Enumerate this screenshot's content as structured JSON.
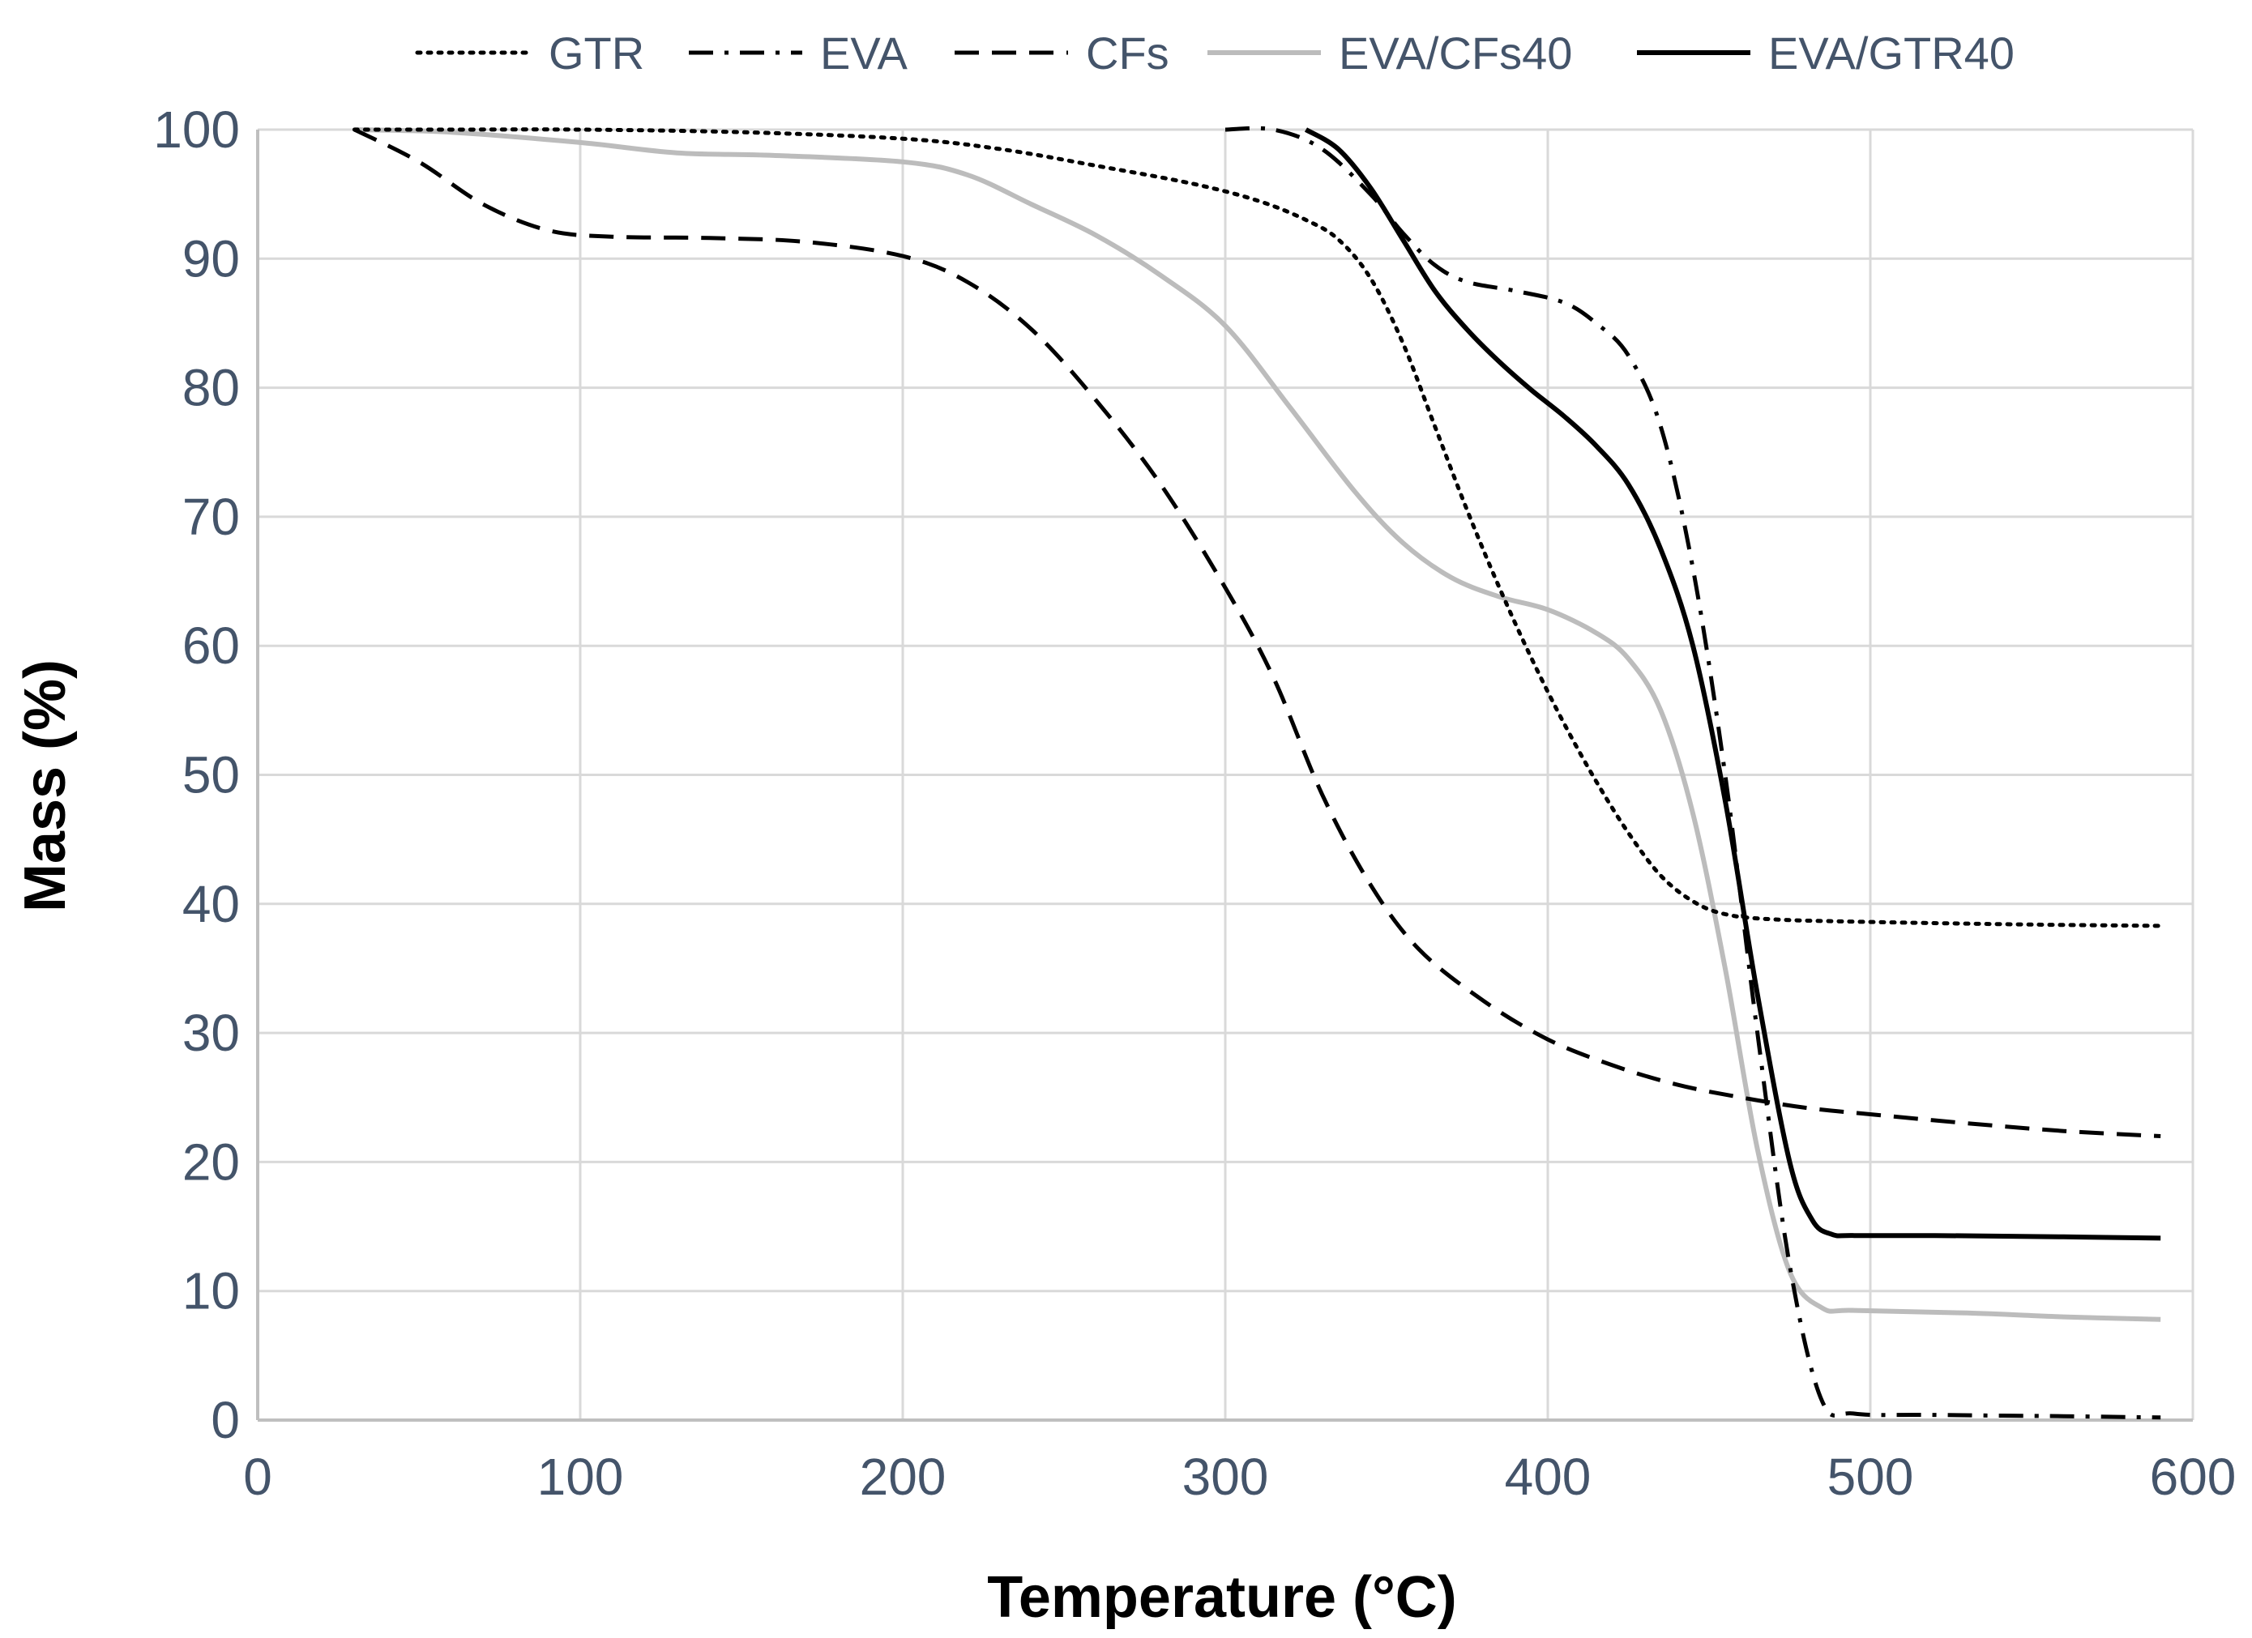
{
  "chart_data": {
    "type": "line",
    "title": "",
    "xlabel": "Temperature (°C)",
    "ylabel": "Mass (%)",
    "xlim": [
      0,
      600
    ],
    "ylim": [
      0,
      100
    ],
    "x_ticks": [
      "0",
      "100",
      "200",
      "300",
      "400",
      "500",
      "600"
    ],
    "y_ticks": [
      "0",
      "10",
      "20",
      "30",
      "40",
      "50",
      "60",
      "70",
      "80",
      "90",
      "100"
    ],
    "grid": "on",
    "legend_position": "top",
    "series": [
      {
        "name": "GTR",
        "style": "dotted",
        "color": "#000000",
        "x": [
          30,
          60,
          100,
          150,
          200,
          230,
          260,
          290,
          310,
          325,
          335,
          345,
          355,
          365,
          375,
          385,
          395,
          405,
          415,
          425,
          435,
          445,
          455,
          470,
          500,
          550,
          590
        ],
        "y": [
          100,
          100,
          100,
          99.8,
          99.3,
          98.5,
          97.2,
          95.8,
          94.5,
          93,
          91.5,
          88.5,
          83.5,
          77,
          70.5,
          64.5,
          59,
          54,
          49.5,
          45.5,
          42.2,
          40.2,
          39.2,
          38.8,
          38.6,
          38.4,
          38.3
        ]
      },
      {
        "name": "EVA",
        "style": "dash-dot",
        "color": "#000000",
        "x": [
          300,
          315,
          330,
          345,
          355,
          365,
          375,
          390,
          405,
          415,
          425,
          435,
          445,
          455,
          465,
          475,
          485,
          495,
          520,
          560,
          590
        ],
        "y": [
          100,
          100,
          98.5,
          95,
          92,
          89.5,
          88.2,
          87.5,
          86.6,
          85,
          82.5,
          77,
          66,
          50,
          30,
          12,
          1.5,
          0.5,
          0.4,
          0.3,
          0.2
        ]
      },
      {
        "name": "CFs",
        "style": "dashed",
        "color": "#000000",
        "x": [
          30,
          50,
          70,
          90,
          110,
          140,
          170,
          200,
          220,
          240,
          260,
          280,
          300,
          315,
          330,
          345,
          360,
          380,
          400,
          420,
          440,
          460,
          480,
          500,
          530,
          560,
          590
        ],
        "y": [
          100,
          97.5,
          94.2,
          92.2,
          91.7,
          91.6,
          91.3,
          90.2,
          88.2,
          84.5,
          79,
          72.5,
          64.5,
          57.5,
          48.5,
          41.5,
          36.5,
          32.5,
          29.5,
          27.5,
          26,
          25,
          24.2,
          23.7,
          23,
          22.4,
          22
        ]
      },
      {
        "name": "EVA/CFs40",
        "style": "solid",
        "color": "#bcbcbc",
        "x": [
          30,
          60,
          100,
          130,
          160,
          200,
          220,
          240,
          260,
          280,
          300,
          320,
          340,
          355,
          370,
          385,
          400,
          415,
          425,
          435,
          445,
          455,
          465,
          475,
          485,
          495,
          530,
          560,
          590
        ],
        "y": [
          100,
          99.8,
          99,
          98.2,
          98,
          97.5,
          96.5,
          94.2,
          91.8,
          88.7,
          84.8,
          78.5,
          72,
          68,
          65.3,
          63.8,
          62.8,
          61,
          59,
          55,
          47,
          35,
          21,
          11.5,
          8.7,
          8.5,
          8.3,
          8,
          7.8
        ]
      },
      {
        "name": "EVA/GTR40",
        "style": "solid",
        "color": "#000000",
        "x": [
          325,
          335,
          345,
          355,
          365,
          375,
          385,
          395,
          405,
          415,
          425,
          435,
          445,
          455,
          465,
          475,
          482,
          488,
          495,
          520,
          560,
          590
        ],
        "y": [
          100,
          98.5,
          95.5,
          91.5,
          87.5,
          84.5,
          82,
          79.8,
          77.8,
          75.5,
          72.5,
          67.5,
          60,
          48,
          33,
          20,
          15.5,
          14.4,
          14.3,
          14.3,
          14.2,
          14.1
        ]
      }
    ]
  }
}
